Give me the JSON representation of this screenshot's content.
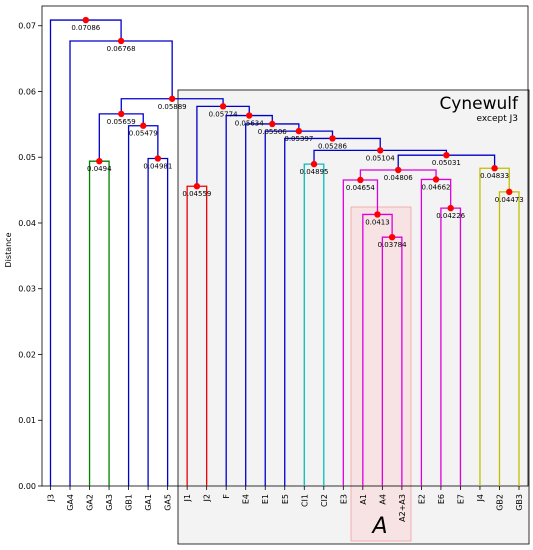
{
  "chart_data": {
    "type": "dendrogram",
    "ylabel": "Distance",
    "ylim": [
      0,
      0.073
    ],
    "yticks": [
      0.0,
      0.01,
      0.02,
      0.03,
      0.04,
      0.05,
      0.06,
      0.07
    ],
    "ytick_labels": [
      "0.00",
      "0.01",
      "0.02",
      "0.03",
      "0.04",
      "0.05",
      "0.06",
      "0.07"
    ],
    "leaves": [
      "J3",
      "GA4",
      "GA2",
      "GA3",
      "GB1",
      "GA1",
      "GA5",
      "J1",
      "J2",
      "F",
      "E4",
      "E1",
      "E5",
      "CI1",
      "CI2",
      "E3",
      "A1",
      "A4",
      "A2+A3",
      "E2",
      "E6",
      "E7",
      "J4",
      "GB2",
      "GB3"
    ],
    "colors": {
      "blue": "#0000cc",
      "green": "#008000",
      "red": "#ee0000",
      "cyan": "#00bfbf",
      "magenta": "#dd00dd",
      "yellow": "#c0c000",
      "node": "#ff0000"
    },
    "merges": [
      {
        "a": "GA2",
        "b": "GA3",
        "height": 0.0494,
        "label": "0.0494",
        "color": "green"
      },
      {
        "a": "GA1",
        "b": "GA5",
        "height": 0.04981,
        "label": "0.04981",
        "color": "blue"
      },
      {
        "a": "GB1",
        "b": "GA1|GA5",
        "height": 0.05479,
        "label": "0.05479",
        "color": "blue"
      },
      {
        "a": "GA2|GA3",
        "b": "GB1|GA1|GA5",
        "height": 0.05659,
        "label": "0.05659",
        "color": "blue"
      },
      {
        "a": "J1",
        "b": "J2",
        "height": 0.04559,
        "label": "0.04559",
        "color": "red"
      },
      {
        "a": "CI1",
        "b": "CI2",
        "height": 0.04895,
        "label": "0.04895",
        "color": "cyan"
      },
      {
        "a": "A4",
        "b": "A2+A3",
        "height": 0.03784,
        "label": "0.03784",
        "color": "magenta"
      },
      {
        "a": "A1",
        "b": "A4|A2+A3",
        "height": 0.0413,
        "label": "0.0413",
        "color": "magenta"
      },
      {
        "a": "E3",
        "b": "A1|A4|A2+A3",
        "height": 0.04654,
        "label": "0.04654",
        "color": "magenta"
      },
      {
        "a": "E6",
        "b": "E7",
        "height": 0.04226,
        "label": "0.04226",
        "color": "magenta"
      },
      {
        "a": "E2",
        "b": "E6|E7",
        "height": 0.04662,
        "label": "0.04662",
        "color": "magenta"
      },
      {
        "a": "E3-group",
        "b": "E2-group",
        "height": 0.04806,
        "label": "0.04806",
        "color": "magenta"
      },
      {
        "a": "GB2",
        "b": "GB3",
        "height": 0.04473,
        "label": "0.04473",
        "color": "yellow"
      },
      {
        "a": "J4",
        "b": "GB2|GB3",
        "height": 0.04833,
        "label": "0.04833",
        "color": "yellow"
      },
      {
        "a": "E-A-group",
        "b": "J4-group",
        "height": 0.05031,
        "label": "0.05031",
        "color": "blue"
      },
      {
        "a": "CI-group",
        "b": "E-J4-group",
        "height": 0.05104,
        "label": "0.05104",
        "color": "blue"
      },
      {
        "a": "E5",
        "b": "CI-E-group",
        "height": 0.05286,
        "label": "0.05286",
        "color": "blue"
      },
      {
        "a": "E1",
        "b": "E5-group",
        "height": 0.05397,
        "label": "0.05397",
        "color": "blue"
      },
      {
        "a": "E4",
        "b": "E1-group",
        "height": 0.05506,
        "label": "0.05506",
        "color": "blue"
      },
      {
        "a": "F",
        "b": "E4-group",
        "height": 0.05634,
        "label": "0.05634",
        "color": "blue"
      },
      {
        "a": "J-group",
        "b": "F-group",
        "height": 0.05774,
        "label": "0.05774",
        "color": "blue"
      },
      {
        "a": "GA-GB-group",
        "b": "Cynewulf-group",
        "height": 0.05889,
        "label": "0.05889",
        "color": "blue"
      },
      {
        "a": "GA4",
        "b": "rest",
        "height": 0.06768,
        "label": "0.06768",
        "color": "blue"
      },
      {
        "a": "J3",
        "b": "all",
        "height": 0.07086,
        "label": "0.07086",
        "color": "blue"
      }
    ],
    "annotations": {
      "group_title": "Cynewulf",
      "group_subtitle": "except J3",
      "highlight_label": "A"
    }
  }
}
